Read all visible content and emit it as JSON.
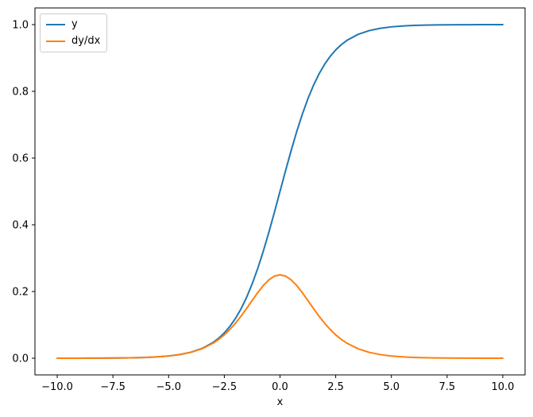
{
  "figure": {
    "background": "#ffffff",
    "spine_color": "#000000",
    "text_color": "#000000"
  },
  "chart_data": {
    "type": "line",
    "title": "",
    "xlabel": "x",
    "ylabel": "",
    "grid": false,
    "xlim": [
      -11,
      11
    ],
    "ylim": [
      -0.05,
      1.05
    ],
    "x_ticks": {
      "values": [
        -10,
        -7.5,
        -5,
        -2.5,
        0,
        2.5,
        5,
        7.5,
        10
      ],
      "labels": [
        "−10.0",
        "−7.5",
        "−5.0",
        "−2.5",
        "0.0",
        "2.5",
        "5.0",
        "7.5",
        "10.0"
      ]
    },
    "y_ticks": {
      "values": [
        0,
        0.2,
        0.4,
        0.6,
        0.8,
        1.0
      ],
      "labels": [
        "0.0",
        "0.2",
        "0.4",
        "0.6",
        "0.8",
        "1.0"
      ]
    },
    "legend": {
      "position": "upper-left",
      "items": [
        {
          "label": "y",
          "color": "#1f77b4"
        },
        {
          "label": "dy/dx",
          "color": "#ff7f0e"
        }
      ]
    },
    "x": [
      -10,
      -9.5,
      -9,
      -8.5,
      -8,
      -7.5,
      -7,
      -6.5,
      -6,
      -5.5,
      -5,
      -4.5,
      -4,
      -3.5,
      -3,
      -2.75,
      -2.5,
      -2.25,
      -2,
      -1.75,
      -1.5,
      -1.25,
      -1,
      -0.75,
      -0.5,
      -0.25,
      0,
      0.25,
      0.5,
      0.75,
      1,
      1.25,
      1.5,
      1.75,
      2,
      2.25,
      2.5,
      2.75,
      3,
      3.5,
      4,
      4.5,
      5,
      5.5,
      6,
      6.5,
      7,
      7.5,
      8,
      8.5,
      9,
      9.5,
      10
    ],
    "series": [
      {
        "name": "y",
        "color": "#1f77b4",
        "values": [
          4.5e-05,
          7.5e-05,
          0.000123,
          0.000203,
          0.000335,
          0.000553,
          0.000911,
          0.001501,
          0.002473,
          0.00407,
          0.006693,
          0.010987,
          0.017986,
          0.029312,
          0.047426,
          0.060086,
          0.075858,
          0.095349,
          0.119203,
          0.148047,
          0.182426,
          0.2227,
          0.268941,
          0.320821,
          0.377541,
          0.437824,
          0.5,
          0.562177,
          0.622459,
          0.679179,
          0.731059,
          0.7773,
          0.817574,
          0.851953,
          0.880797,
          0.904651,
          0.924142,
          0.939914,
          0.952574,
          0.970688,
          0.982014,
          0.989013,
          0.993307,
          0.99593,
          0.997527,
          0.998499,
          0.999089,
          0.999447,
          0.999665,
          0.999797,
          0.999877,
          0.999925,
          0.999955
        ]
      },
      {
        "name": "dy/dx",
        "color": "#ff7f0e",
        "values": [
          4.5e-05,
          7.5e-05,
          0.000123,
          0.000203,
          0.000335,
          0.000552,
          0.00091,
          0.001499,
          0.002467,
          0.004053,
          0.006648,
          0.010866,
          0.017663,
          0.028453,
          0.045177,
          0.056476,
          0.070104,
          0.086257,
          0.104994,
          0.126129,
          0.149146,
          0.173105,
          0.196612,
          0.217895,
          0.235004,
          0.246134,
          0.25,
          0.246134,
          0.235004,
          0.217895,
          0.196612,
          0.173105,
          0.149146,
          0.126129,
          0.104994,
          0.086257,
          0.070104,
          0.056476,
          0.045177,
          0.028453,
          0.017663,
          0.010866,
          0.006648,
          0.004053,
          0.002467,
          0.001499,
          0.00091,
          0.000552,
          0.000335,
          0.000203,
          0.000123,
          7.5e-05,
          4.5e-05
        ]
      }
    ]
  }
}
